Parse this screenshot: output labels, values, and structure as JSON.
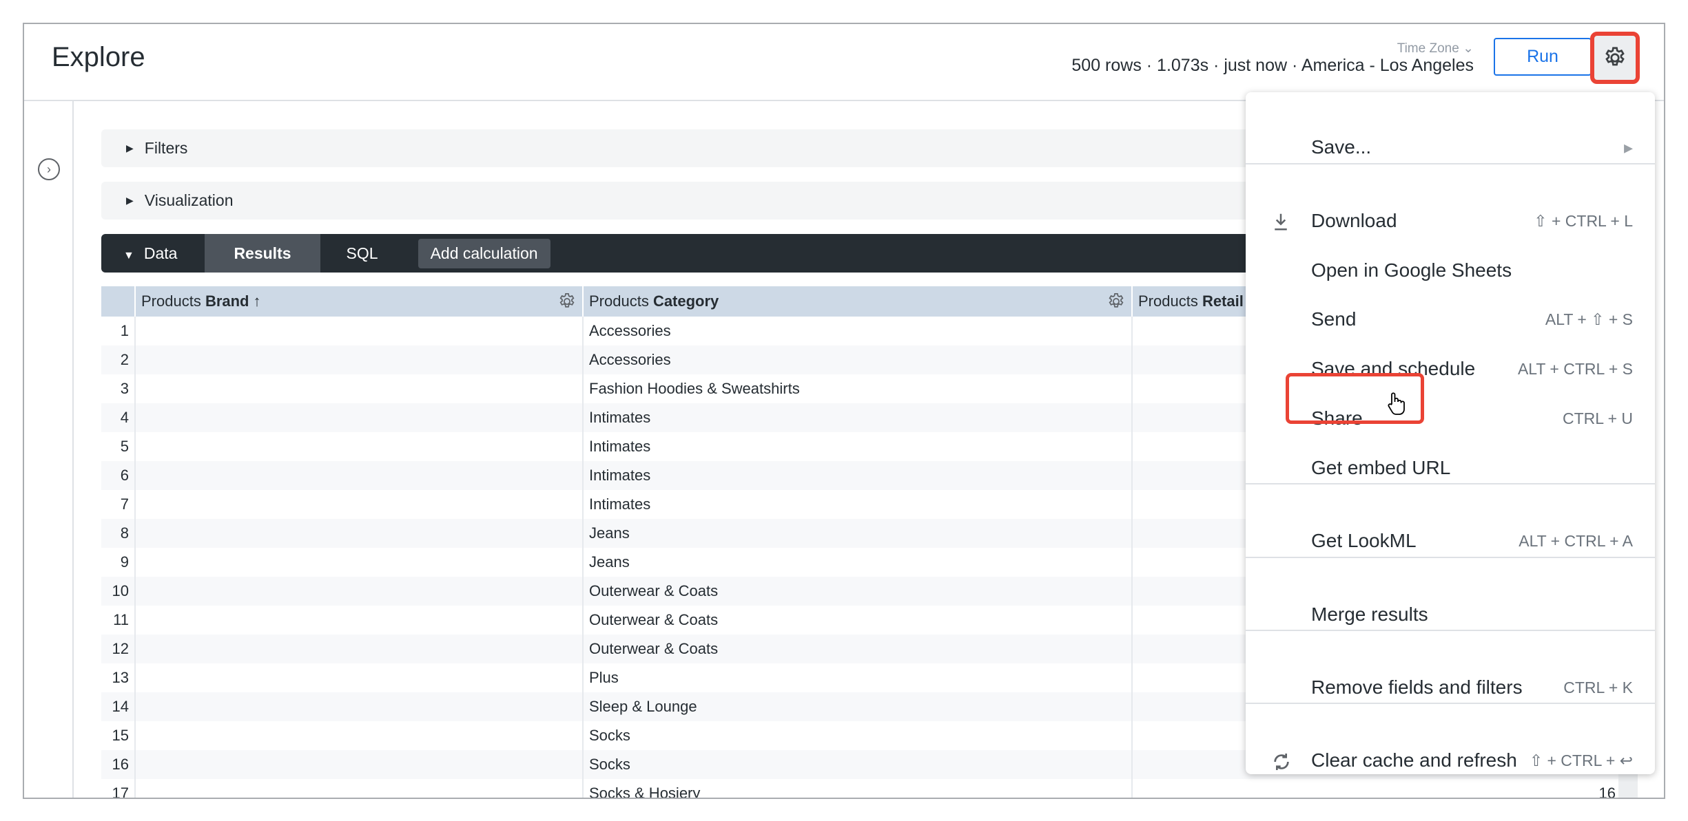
{
  "header": {
    "title": "Explore",
    "time_zone_label": "Time Zone",
    "status": "500 rows · 1.073s · just now · America - Los Angeles",
    "run_label": "Run"
  },
  "sections": {
    "filters": "Filters",
    "visualization": "Visualization"
  },
  "data_bar": {
    "data": "Data",
    "results": "Results",
    "sql": "SQL",
    "add_calculation": "Add calculation"
  },
  "table": {
    "columns": [
      {
        "prefix": "Products ",
        "name": "Brand",
        "sort": "↑"
      },
      {
        "prefix": "Products ",
        "name": "Category"
      },
      {
        "prefix": "Products ",
        "name": "Retail"
      }
    ],
    "rows": [
      {
        "n": "1",
        "brand": "",
        "category": "Accessories",
        "retail": ""
      },
      {
        "n": "2",
        "brand": "",
        "category": "Accessories",
        "retail": ""
      },
      {
        "n": "3",
        "brand": "",
        "category": "Fashion Hoodies & Sweatshirts",
        "retail": ""
      },
      {
        "n": "4",
        "brand": "",
        "category": "Intimates",
        "retail": ""
      },
      {
        "n": "5",
        "brand": "",
        "category": "Intimates",
        "retail": ""
      },
      {
        "n": "6",
        "brand": "",
        "category": "Intimates",
        "retail": ""
      },
      {
        "n": "7",
        "brand": "",
        "category": "Intimates",
        "retail": ""
      },
      {
        "n": "8",
        "brand": "",
        "category": "Jeans",
        "retail": ""
      },
      {
        "n": "9",
        "brand": "",
        "category": "Jeans",
        "retail": ""
      },
      {
        "n": "10",
        "brand": "",
        "category": "Outerwear & Coats",
        "retail": ""
      },
      {
        "n": "11",
        "brand": "",
        "category": "Outerwear & Coats",
        "retail": ""
      },
      {
        "n": "12",
        "brand": "",
        "category": "Outerwear & Coats",
        "retail": ""
      },
      {
        "n": "13",
        "brand": "",
        "category": "Plus",
        "retail": ""
      },
      {
        "n": "14",
        "brand": "",
        "category": "Sleep & Lounge",
        "retail": ""
      },
      {
        "n": "15",
        "brand": "",
        "category": "Socks",
        "retail": ""
      },
      {
        "n": "16",
        "brand": "",
        "category": "Socks",
        "retail": ""
      },
      {
        "n": "17",
        "brand": "",
        "category": "Socks & Hosiery",
        "retail": "16"
      }
    ]
  },
  "menu": {
    "items": [
      {
        "label": "Save...",
        "shortcut": ""
      },
      {
        "label": "Download",
        "shortcut": "⇧ + CTRL + L",
        "icon": "download-icon"
      },
      {
        "label": "Open in Google Sheets",
        "shortcut": ""
      },
      {
        "label": "Send",
        "shortcut": "ALT + ⇧ + S"
      },
      {
        "label": "Save and schedule",
        "shortcut": "ALT + CTRL + S"
      },
      {
        "label": "Share",
        "shortcut": "CTRL + U",
        "highlighted": true
      },
      {
        "label": "Get embed URL",
        "shortcut": ""
      },
      {
        "label": "Get LookML",
        "shortcut": "ALT + CTRL + A"
      },
      {
        "label": "Merge results",
        "shortcut": ""
      },
      {
        "label": "Remove fields and filters",
        "shortcut": "CTRL + K"
      },
      {
        "label": "Clear cache and refresh",
        "shortcut": "⇧ + CTRL + ↩",
        "icon": "refresh-icon"
      }
    ]
  },
  "colors": {
    "accent": "#1a73e8",
    "highlight": "#ea4335",
    "dark_bar": "#262d33",
    "table_header": "#cdd9e6"
  }
}
